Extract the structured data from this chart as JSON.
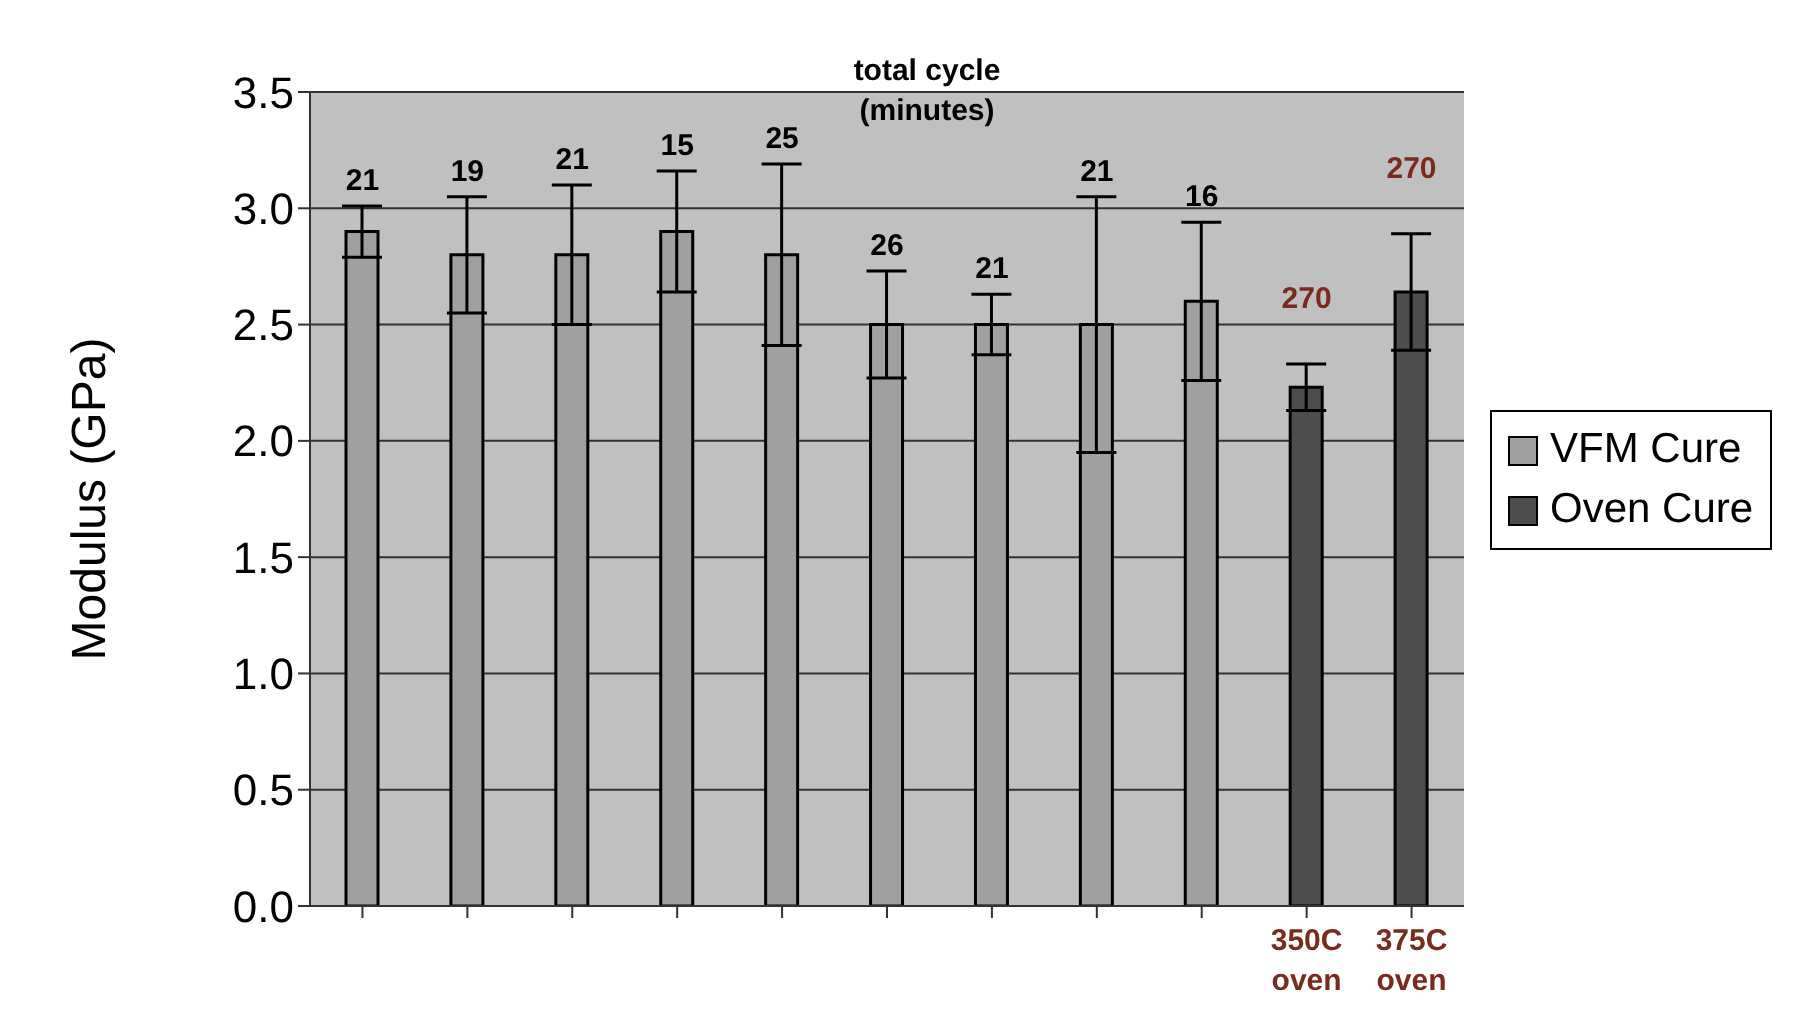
{
  "chart_data": {
    "type": "bar",
    "ylabel": "Modulus (GPa)",
    "annotations": [
      "total cycle (minutes)",
      "21",
      "19",
      "21",
      "15",
      "25",
      "26",
      "21",
      "21",
      "16",
      "270",
      "270"
    ],
    "categories": [
      null,
      null,
      null,
      null,
      null,
      null,
      null,
      null,
      null,
      "350C oven",
      "375C oven"
    ],
    "series": [
      {
        "name": "VFM Cure",
        "color": "#a0a0a0",
        "values": [
          2.9,
          2.8,
          2.8,
          2.9,
          2.8,
          2.5,
          2.5,
          2.5,
          2.6,
          null,
          null
        ],
        "errors": [
          0.11,
          0.25,
          0.3,
          0.26,
          0.39,
          0.23,
          0.13,
          0.55,
          0.34,
          null,
          null
        ]
      },
      {
        "name": "Oven Cure",
        "color": "#4d4d4d",
        "values": [
          null,
          null,
          null,
          null,
          null,
          null,
          null,
          null,
          null,
          2.23,
          2.64
        ],
        "errors": [
          null,
          null,
          null,
          null,
          null,
          null,
          null,
          null,
          null,
          0.1,
          0.25
        ]
      }
    ],
    "ylim": [
      0,
      3.5
    ],
    "yticks": [
      {
        "value": 0,
        "label": "0.0"
      },
      {
        "value": 0.5,
        "label": "0.5"
      },
      {
        "value": 1,
        "label": "1.0"
      },
      {
        "value": 1.5,
        "label": "1.5"
      },
      {
        "value": 2,
        "label": "2.0"
      },
      {
        "value": 2.5,
        "label": "2.5"
      },
      {
        "value": 3,
        "label": "3.0"
      },
      {
        "value": 3.5,
        "label": "3.5"
      }
    ],
    "grid": "y",
    "legend": "right"
  }
}
